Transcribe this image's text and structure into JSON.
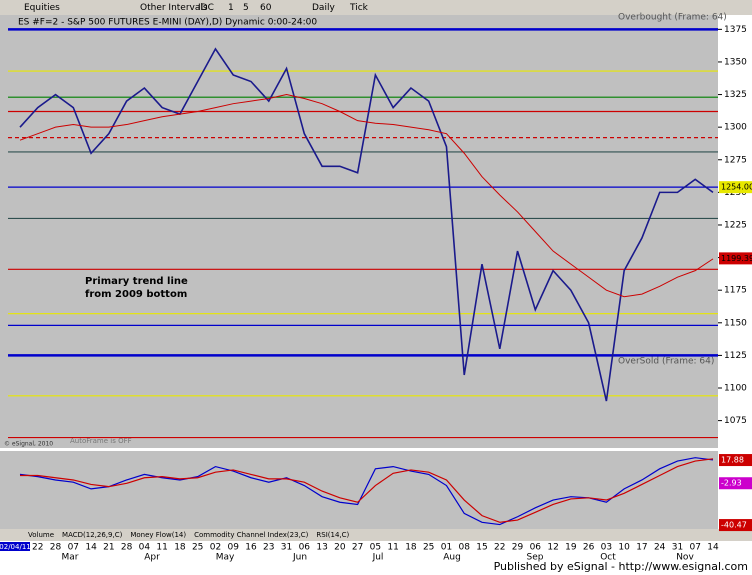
{
  "toolbar": {
    "items": [
      "Equities",
      "Other Intervals",
      "IDC",
      "1",
      "5",
      "60",
      "Daily",
      "Tick"
    ]
  },
  "chart_data": {
    "type": "line",
    "title": "ES #F=2 - S&P 500 FUTURES E-MINI (DAY),D) Dynamic 0:00-24:00",
    "categories": [
      "02/04/11",
      "22",
      "28",
      "07",
      "14",
      "21",
      "28",
      "04",
      "11",
      "18",
      "25",
      "02",
      "09",
      "16",
      "23",
      "31",
      "06",
      "13",
      "20",
      "27",
      "05",
      "11",
      "18",
      "25",
      "01",
      "08",
      "15",
      "22",
      "29",
      "06",
      "12",
      "19",
      "26",
      "03",
      "10",
      "17",
      "24",
      "31",
      "07",
      "14"
    ],
    "months": [
      "Mar",
      "Apr",
      "May",
      "Jun",
      "Jul",
      "Aug",
      "Sep",
      "Oct",
      "Nov"
    ],
    "series": [
      {
        "name": "Price",
        "color": "#1a1a8c",
        "values": [
          1300,
          1315,
          1325,
          1315,
          1280,
          1295,
          1320,
          1330,
          1315,
          1310,
          1335,
          1360,
          1340,
          1335,
          1320,
          1345,
          1295,
          1270,
          1270,
          1265,
          1340,
          1315,
          1330,
          1320,
          1285,
          1110,
          1195,
          1130,
          1205,
          1160,
          1190,
          1175,
          1150,
          1090,
          1190,
          1215,
          1250,
          1250,
          1260,
          1250
        ]
      },
      {
        "name": "Moving Average",
        "color": "#cc0000",
        "values": [
          1290,
          1295,
          1300,
          1302,
          1300,
          1300,
          1302,
          1305,
          1308,
          1310,
          1312,
          1315,
          1318,
          1320,
          1322,
          1325,
          1322,
          1318,
          1312,
          1305,
          1303,
          1302,
          1300,
          1298,
          1295,
          1280,
          1262,
          1248,
          1235,
          1220,
          1205,
          1195,
          1185,
          1175,
          1170,
          1172,
          1178,
          1185,
          1190,
          1199
        ]
      }
    ],
    "ylim": [
      1054,
      1386
    ],
    "yticks": [
      1075,
      1100,
      1125,
      1150,
      1175,
      1200,
      1225,
      1250,
      1275,
      1300,
      1325,
      1350,
      1375
    ],
    "levels": [
      {
        "value": 1375,
        "color": "#0000cc",
        "heavy": true
      },
      {
        "value": 1343,
        "color": "#e8e800"
      },
      {
        "value": 1323,
        "color": "#008000"
      },
      {
        "value": 1312,
        "color": "#cc0000"
      },
      {
        "value": 1292,
        "color": "#cc0000",
        "dash": true
      },
      {
        "value": 1281,
        "color": "#2f4f4f"
      },
      {
        "value": 1254,
        "color": "#0000cc"
      },
      {
        "value": 1230,
        "color": "#2f4f4f"
      },
      {
        "value": 1191,
        "color": "#cc0000"
      },
      {
        "value": 1157,
        "color": "#e8e800"
      },
      {
        "value": 1148,
        "color": "#0000cc"
      },
      {
        "value": 1125,
        "color": "#0000cc",
        "heavy": true
      },
      {
        "value": 1094,
        "color": "#e8e800"
      },
      {
        "value": 1062,
        "color": "#cc0000"
      }
    ],
    "price_labels": [
      {
        "value": 1254,
        "label": "1254.00",
        "color": "#e8e800"
      },
      {
        "value": 1199.39,
        "label": "1199.39",
        "color": "#cc0000"
      }
    ],
    "annotations": {
      "overbought": "Overbought (Frame: 64)",
      "oversold": "OverSold (Frame: 64)",
      "trend_1": "Primary trend line",
      "trend_2": "from 2009 bottom",
      "copyright": "© eSignal, 2010",
      "autoframe": "AutoFrame is OFF"
    },
    "macd": {
      "ylim": [
        -44,
        26
      ],
      "series": [
        {
          "name": "MACD",
          "color": "#0000cc",
          "values": [
            5,
            3,
            0,
            -2,
            -8,
            -6,
            0,
            5,
            2,
            0,
            3,
            12,
            8,
            2,
            -2,
            2,
            -5,
            -15,
            -20,
            -22,
            10,
            12,
            8,
            5,
            -5,
            -30,
            -38,
            -40,
            -33,
            -25,
            -18,
            -15,
            -16,
            -20,
            -8,
            0,
            10,
            17,
            20,
            18
          ]
        },
        {
          "name": "Signal",
          "color": "#cc0000",
          "values": [
            4,
            4,
            2,
            0,
            -4,
            -6,
            -3,
            2,
            3,
            1,
            2,
            7,
            9,
            5,
            1,
            1,
            -2,
            -10,
            -16,
            -20,
            -5,
            6,
            9,
            7,
            0,
            -18,
            -32,
            -38,
            -36,
            -29,
            -22,
            -17,
            -16,
            -18,
            -12,
            -4,
            4,
            12,
            17,
            19
          ]
        }
      ],
      "value_labels": [
        {
          "value": 17.88,
          "label": "17.88",
          "color": "#cc0000"
        },
        {
          "value": -2.93,
          "label": "-2.93",
          "color": "#cc00cc"
        },
        {
          "value": -40.47,
          "label": "-40.47",
          "color": "#cc0000"
        }
      ]
    },
    "tabs": [
      "Volume",
      "MACD(12,26,9,C)",
      "Money Flow(14)",
      "Commodity Channel Index(23,C)",
      "RSI(14,C)"
    ]
  },
  "footer": "Published by eSignal - http://www.esignal.com"
}
